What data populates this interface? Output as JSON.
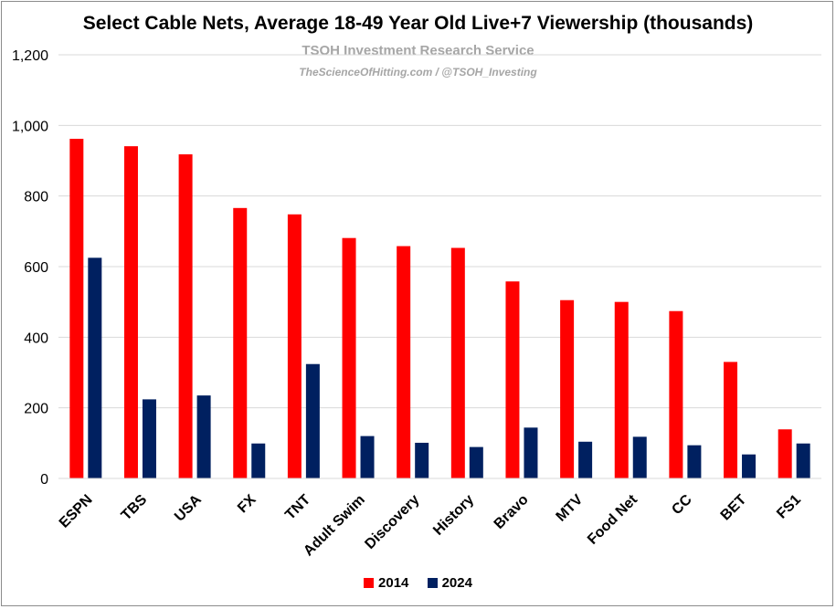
{
  "chart_data": {
    "type": "bar",
    "title": "Select Cable Nets, Average 18-49 Year Old Live+7 Viewership (thousands)",
    "watermark_line1": "TSOH Investment Research Service",
    "watermark_line2": "TheScienceOfHitting.com / @TSOH_Investing",
    "xlabel": "",
    "ylabel": "",
    "ylim": [
      0,
      1200
    ],
    "yticks": [
      0,
      200,
      400,
      600,
      800,
      1000,
      1200
    ],
    "ytick_labels": [
      "0",
      "200",
      "400",
      "600",
      "800",
      "1,000",
      "1,200"
    ],
    "grid": true,
    "legend_position": "bottom",
    "categories": [
      "ESPN",
      "TBS",
      "USA",
      "FX",
      "TNT",
      "Adult Swim",
      "Discovery",
      "History",
      "Bravo",
      "MTV",
      "Food Net",
      "CC",
      "BET",
      "FS1"
    ],
    "series": [
      {
        "name": "2014",
        "color": "#ff0000",
        "values": [
          962,
          941,
          918,
          766,
          748,
          681,
          658,
          653,
          558,
          505,
          500,
          474,
          330,
          139
        ]
      },
      {
        "name": "2024",
        "color": "#002060",
        "values": [
          625,
          224,
          235,
          99,
          324,
          120,
          101,
          89,
          144,
          104,
          118,
          94,
          68,
          99
        ]
      }
    ]
  }
}
